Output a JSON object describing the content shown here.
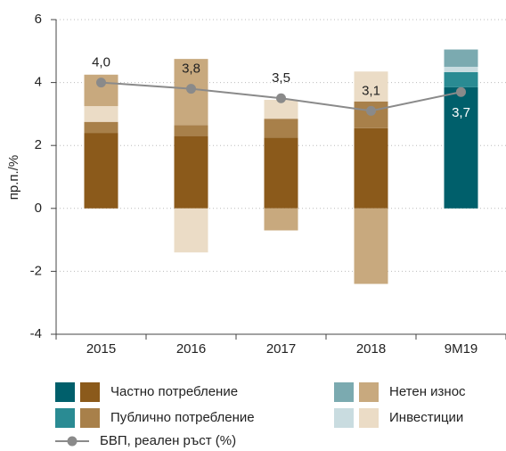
{
  "chart_data": {
    "type": "stacked_bar_line",
    "y_label": "пр.п./%",
    "categories": [
      "2015",
      "2016",
      "2017",
      "2018",
      "9M19"
    ],
    "ylim": [
      -4,
      6
    ],
    "yticks": [
      -4,
      -2,
      0,
      2,
      4,
      6
    ],
    "grid": true,
    "series": [
      {
        "name": "Частно потребление",
        "values": [
          2.4,
          2.3,
          2.25,
          2.55,
          3.85
        ],
        "colors": [
          "#8b5a1b",
          "#8b5a1b",
          "#8b5a1b",
          "#8b5a1b",
          "#005f6b"
        ]
      },
      {
        "name": "Публично потребление",
        "values": [
          0.35,
          0.35,
          0.6,
          0.85,
          0.48
        ],
        "colors": [
          "#a8804a",
          "#a8804a",
          "#a8804a",
          "#a8804a",
          "#2a8b93"
        ]
      },
      {
        "name": "Инвестиции",
        "values": [
          0.5,
          -1.4,
          0.6,
          0.95,
          0.17
        ],
        "colors": [
          "#ebdcc6",
          "#ebdcc6",
          "#ebdcc6",
          "#ebdcc6",
          "#c9dce0"
        ]
      },
      {
        "name": "Нетен износ",
        "values": [
          1.0,
          2.1,
          -0.7,
          -2.4,
          0.55
        ],
        "colors": [
          "#c8a97e",
          "#c8a97e",
          "#c8a97e",
          "#c8a97e",
          "#7baab0"
        ]
      }
    ],
    "line": {
      "name": "БВП, реален ръст (%)",
      "color": "#8a8a8a",
      "values": [
        4.0,
        3.8,
        3.5,
        3.1,
        3.7
      ],
      "value_labels": [
        "4,0",
        "3,8",
        "3,5",
        "3,1",
        "3,7"
      ]
    }
  }
}
